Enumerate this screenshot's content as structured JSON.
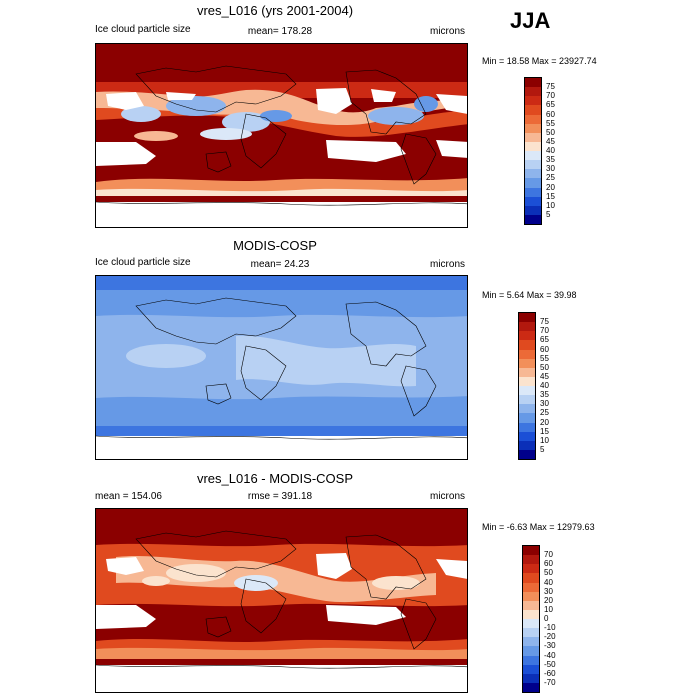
{
  "season": "JJA",
  "panels": [
    {
      "title": "vres_L016 (yrs 2001-2004)",
      "left_label": "Ice cloud particle size",
      "center_label": "mean= 178.28",
      "right_label": "microns",
      "minmax": "Min =  18.58 Max = 23927.74",
      "colorbar": {
        "levels": [
          "75",
          "70",
          "65",
          "60",
          "55",
          "50",
          "45",
          "40",
          "35",
          "30",
          "25",
          "20",
          "15",
          "10",
          "5"
        ],
        "colors": [
          "#8b0000",
          "#b2180e",
          "#cc2a14",
          "#e04a1f",
          "#ec6a37",
          "#f28f5a",
          "#f7b894",
          "#fbe3ce",
          "#dbe8f8",
          "#b8d1f3",
          "#8eb4ec",
          "#6699e6",
          "#3d75e0",
          "#1b4fd6",
          "#0b2fb8",
          "#00008b"
        ]
      }
    },
    {
      "title": "MODIS-COSP",
      "left_label": "Ice cloud particle size",
      "center_label": "mean=  24.23",
      "right_label": "microns",
      "minmax": "Min =   5.64 Max =  39.98",
      "colorbar": {
        "levels": [
          "75",
          "70",
          "65",
          "60",
          "55",
          "50",
          "45",
          "40",
          "35",
          "30",
          "25",
          "20",
          "15",
          "10",
          "5"
        ],
        "colors": [
          "#8b0000",
          "#b2180e",
          "#cc2a14",
          "#e04a1f",
          "#ec6a37",
          "#f28f5a",
          "#f7b894",
          "#fbe3ce",
          "#dbe8f8",
          "#b8d1f3",
          "#8eb4ec",
          "#6699e6",
          "#3d75e0",
          "#1b4fd6",
          "#0b2fb8",
          "#00008b"
        ]
      }
    },
    {
      "title": "vres_L016 - MODIS-COSP",
      "left_label": "mean = 154.06",
      "center_label": "rmse = 391.18",
      "right_label": "microns",
      "minmax": "Min =  -6.63 Max = 12979.63",
      "colorbar": {
        "levels": [
          "70",
          "60",
          "50",
          "40",
          "30",
          "20",
          "10",
          "0",
          "-10",
          "-20",
          "-30",
          "-40",
          "-50",
          "-60",
          "-70"
        ],
        "colors": [
          "#8b0000",
          "#b2180e",
          "#cc2a14",
          "#e04a1f",
          "#ec6a37",
          "#f28f5a",
          "#f7b894",
          "#fbe3ce",
          "#dbe8f8",
          "#b8d1f3",
          "#8eb4ec",
          "#6699e6",
          "#3d75e0",
          "#1b4fd6",
          "#0b2fb8",
          "#00008b"
        ]
      }
    }
  ]
}
